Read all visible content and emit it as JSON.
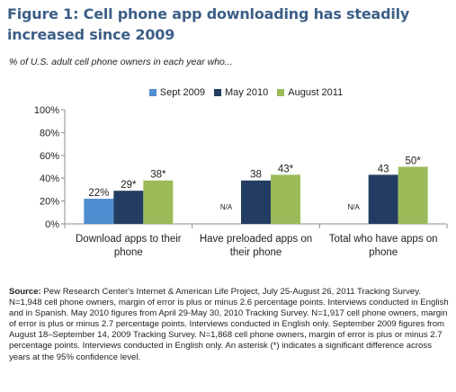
{
  "figure": {
    "title": "Figure 1: Cell phone app downloading has steadily increased since 2009",
    "subtitle": "% of U.S. adult cell phone owners in each year who...",
    "source_label": "Source:",
    "source_text": "Pew Research Center's Internet & American Life Project, July 25-August 26, 2011 Tracking Survey.  N=1,948 cell phone owners, margin of error is plus or minus 2.6 percentage points.  Interviews conducted in English and in Spanish. May 2010 figures from April 29-May 30, 2010 Tracking Survey. N=1,917 cell phone owners, margin of error is plus or minus 2.7 percentage points.  Interviews conducted in English only.  September 2009 figures from August 18–September 14, 2009 Tracking Survey.  N=1,868 cell phone owners, margin of error is plus or minus 2.7 percentage points.  Interviews conducted in English only. An asterisk (*) indicates a significant difference across years at the 95% confidence level."
  },
  "chart_data": {
    "type": "bar",
    "title": "Figure 1: Cell phone app downloading has steadily increased since 2009",
    "subtitle": "% of U.S. adult cell phone owners in each year who...",
    "categories": [
      [
        "Download apps to their",
        "phone"
      ],
      [
        "Have preloaded apps on",
        "their phone"
      ],
      [
        "Total who have apps on",
        "phone"
      ]
    ],
    "series": [
      {
        "name": "Sept 2009",
        "color": "#4f8ed0",
        "values": [
          22,
          null,
          null
        ],
        "labels": [
          "22%",
          "N/A",
          "N/A"
        ]
      },
      {
        "name": "May 2010",
        "color": "#233d62",
        "values": [
          29,
          38,
          43
        ],
        "labels": [
          "29*",
          "38",
          "43"
        ]
      },
      {
        "name": "August 2011",
        "color": "#9bbb59",
        "values": [
          38,
          43,
          50
        ],
        "labels": [
          "38*",
          "43*",
          "50*"
        ]
      }
    ],
    "ylim": [
      0,
      100
    ],
    "yticks": [
      0,
      20,
      40,
      60,
      80,
      100
    ],
    "ytick_labels": [
      "0%",
      "20%",
      "40%",
      "60%",
      "80%",
      "100%"
    ],
    "legend_position": "top",
    "grid": false
  }
}
